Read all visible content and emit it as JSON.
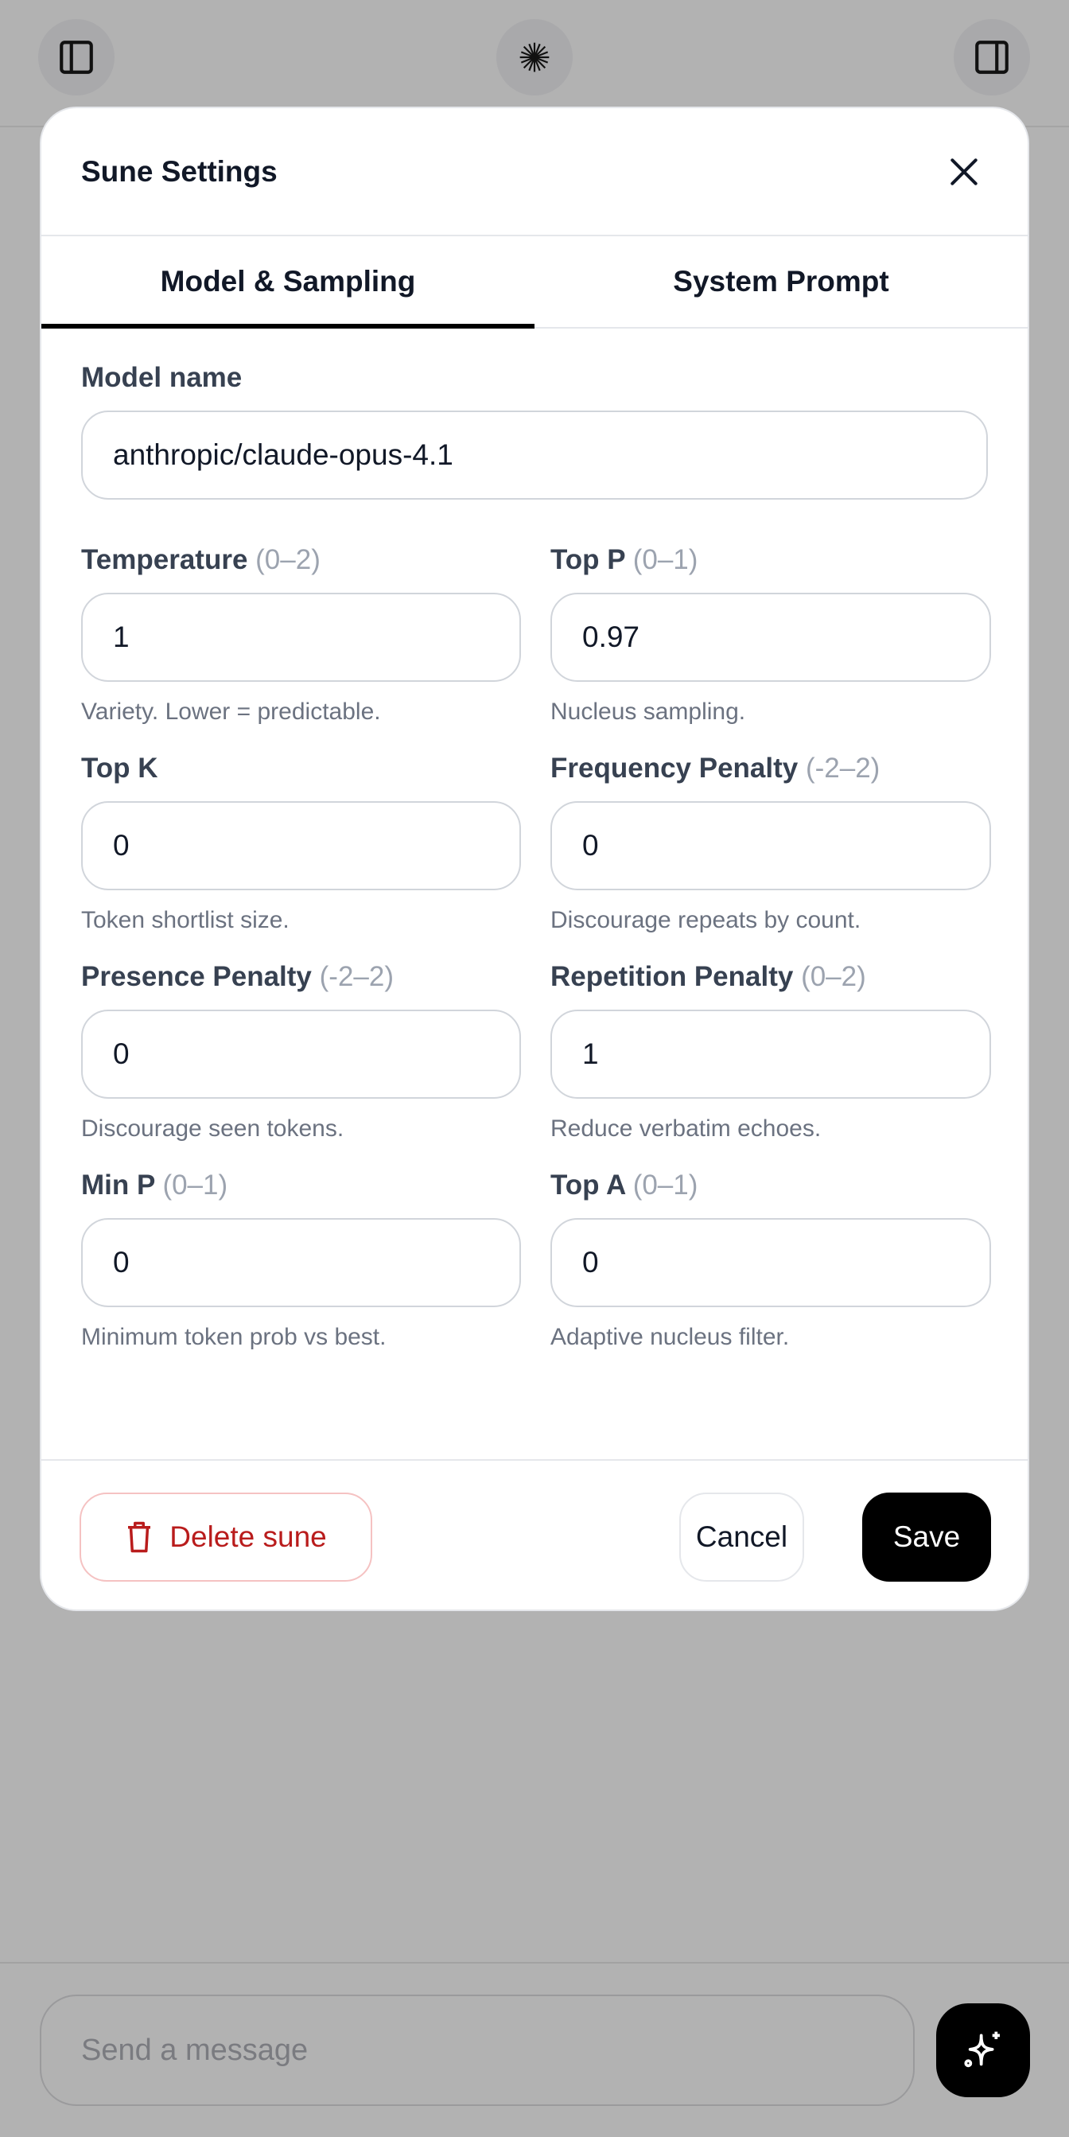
{
  "topbar": {
    "left_icon": "sidebar-left-icon",
    "center_icon": "starburst-logo-icon",
    "right_icon": "sidebar-right-icon"
  },
  "modal": {
    "title": "Sune Settings",
    "tabs": [
      {
        "label": "Model & Sampling",
        "active": true
      },
      {
        "label": "System Prompt",
        "active": false
      }
    ],
    "model_name": {
      "label": "Model name",
      "value": "anthropic/claude-opus-4.1"
    },
    "fields": [
      {
        "label": "Temperature",
        "range": "(0–2)",
        "value": "1",
        "hint": "Variety. Lower = predictable."
      },
      {
        "label": "Top P",
        "range": "(0–1)",
        "value": "0.97",
        "hint": "Nucleus sampling."
      },
      {
        "label": "Top K",
        "range": "",
        "value": "0",
        "hint": "Token shortlist size."
      },
      {
        "label": "Frequency Penalty",
        "range": "(-2–2)",
        "value": "0",
        "hint": "Discourage repeats by count."
      },
      {
        "label": "Presence Penalty",
        "range": "(-2–2)",
        "value": "0",
        "hint": "Discourage seen tokens."
      },
      {
        "label": "Repetition Penalty",
        "range": "(0–2)",
        "value": "1",
        "hint": "Reduce verbatim echoes."
      },
      {
        "label": "Min P",
        "range": "(0–1)",
        "value": "0",
        "hint": "Minimum token prob vs best."
      },
      {
        "label": "Top A",
        "range": "(0–1)",
        "value": "0",
        "hint": "Adaptive nucleus filter."
      }
    ],
    "footer": {
      "delete_label": "Delete sune",
      "cancel_label": "Cancel",
      "save_label": "Save"
    }
  },
  "composer": {
    "placeholder": "Send a message",
    "send_icon": "sparkles-icon"
  },
  "colors": {
    "backdrop": "#b2b2b2",
    "danger": "#b91c1c",
    "primary": "#000000"
  }
}
